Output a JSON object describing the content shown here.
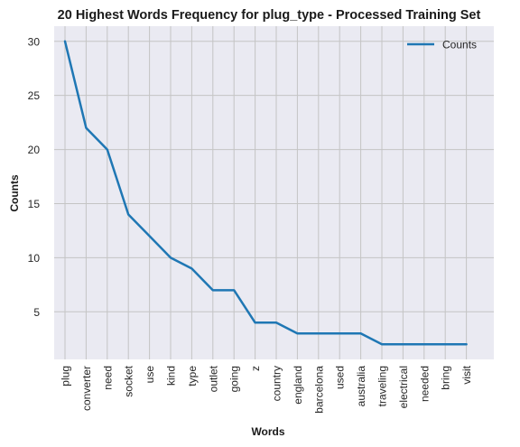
{
  "chart_data": {
    "type": "line",
    "title": "20 Highest Words Frequency for plug_type - Processed Training Set",
    "xlabel": "Words",
    "ylabel": "Counts",
    "categories": [
      "plug",
      "converter",
      "need",
      "socket",
      "use",
      "kind",
      "type",
      "outlet",
      "going",
      "z",
      "country",
      "england",
      "barcelona",
      "used",
      "australia",
      "traveling",
      "electrical",
      "needed",
      "bring",
      "visit"
    ],
    "series": [
      {
        "name": "Counts",
        "values": [
          30,
          22,
          20,
          14,
          12,
          10,
          9,
          7,
          7,
          4,
          4,
          3,
          3,
          3,
          3,
          2,
          2,
          2,
          2,
          2
        ]
      }
    ],
    "yticks": [
      5,
      10,
      15,
      20,
      25,
      30
    ],
    "ylim": [
      0.6,
      31.4
    ],
    "grid": true,
    "legend": "top-right",
    "colors": {
      "line": "#1f77b4",
      "plot_bg": "#eaeaf2",
      "grid": "#c4c4c4"
    }
  }
}
